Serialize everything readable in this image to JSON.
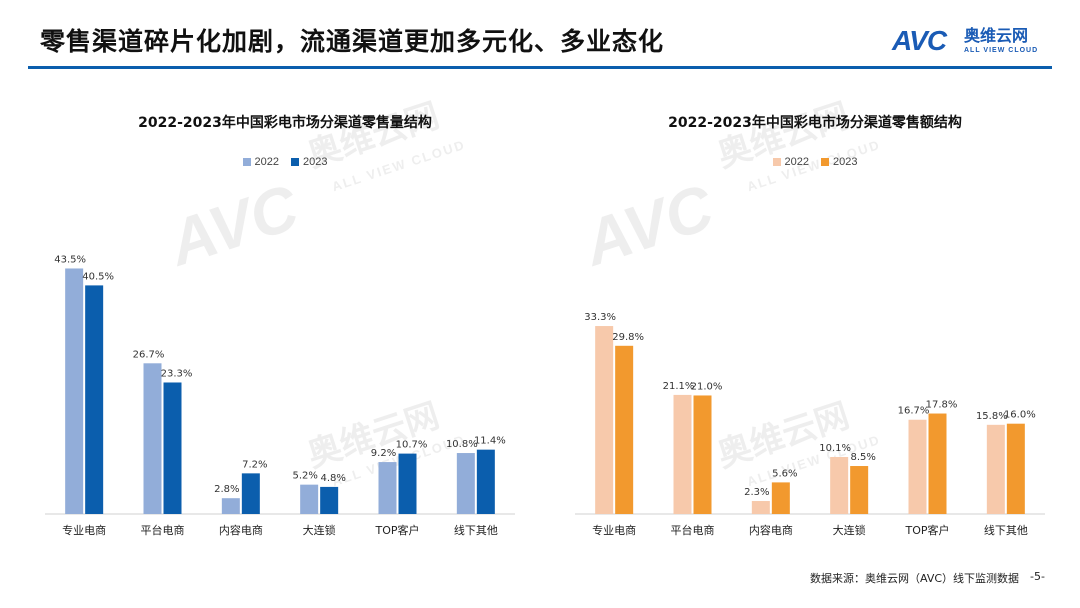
{
  "header": {
    "title": "零售渠道碎片化加剧，流通渠道更加多元化、多业态化",
    "logo_mark": "AVC",
    "logo_cn": "奥维云网",
    "logo_en": "ALL VIEW CLOUD"
  },
  "watermark": {
    "mark": "AVC",
    "cn": "奥维云网",
    "en": "ALL VIEW CLOUD"
  },
  "footer": {
    "source": "数据来源：奥维云网（AVC）线下监测数据",
    "page": "-5-"
  },
  "colors": {
    "accent": "#0b5ead",
    "left_2022": "#92add9",
    "left_2023": "#0b5ead",
    "right_2022": "#f7c9ab",
    "right_2023": "#f2992e"
  },
  "chart_data": [
    {
      "type": "bar",
      "title": "2022-2023年中国彩电市场分渠道零售量结构",
      "categories": [
        "专业电商",
        "平台电商",
        "内容电商",
        "大连锁",
        "TOP客户",
        "线下其他"
      ],
      "series": [
        {
          "name": "2022",
          "values": [
            43.5,
            26.7,
            2.8,
            5.2,
            9.2,
            10.8
          ],
          "labels": [
            "43.5%",
            "26.7%",
            "2.8%",
            "5.2%",
            "9.2%",
            "10.8%"
          ],
          "color": "#92add9"
        },
        {
          "name": "2023",
          "values": [
            40.5,
            23.3,
            7.2,
            4.8,
            10.7,
            11.4
          ],
          "labels": [
            "40.5%",
            "23.3%",
            "7.2%",
            "4.8%",
            "10.7%",
            "11.4%"
          ],
          "color": "#0b5ead"
        }
      ],
      "ylim": [
        0,
        45
      ],
      "grid": false,
      "legend": "top-center"
    },
    {
      "type": "bar",
      "title": "2022-2023年中国彩电市场分渠道零售额结构",
      "categories": [
        "专业电商",
        "平台电商",
        "内容电商",
        "大连锁",
        "TOP客户",
        "线下其他"
      ],
      "series": [
        {
          "name": "2022",
          "values": [
            33.3,
            21.1,
            2.3,
            10.1,
            16.7,
            15.8
          ],
          "labels": [
            "33.3%",
            "21.1%",
            "2.3%",
            "10.1%",
            "16.7%",
            "15.8%"
          ],
          "color": "#f7c9ab"
        },
        {
          "name": "2023",
          "values": [
            29.8,
            21.0,
            5.6,
            8.5,
            17.8,
            16.0
          ],
          "labels": [
            "29.8%",
            "21.0%",
            "5.6%",
            "8.5%",
            "17.8%",
            "16.0%"
          ],
          "color": "#f2992e"
        }
      ],
      "ylim": [
        0,
        45
      ],
      "grid": false,
      "legend": "top-center"
    }
  ]
}
